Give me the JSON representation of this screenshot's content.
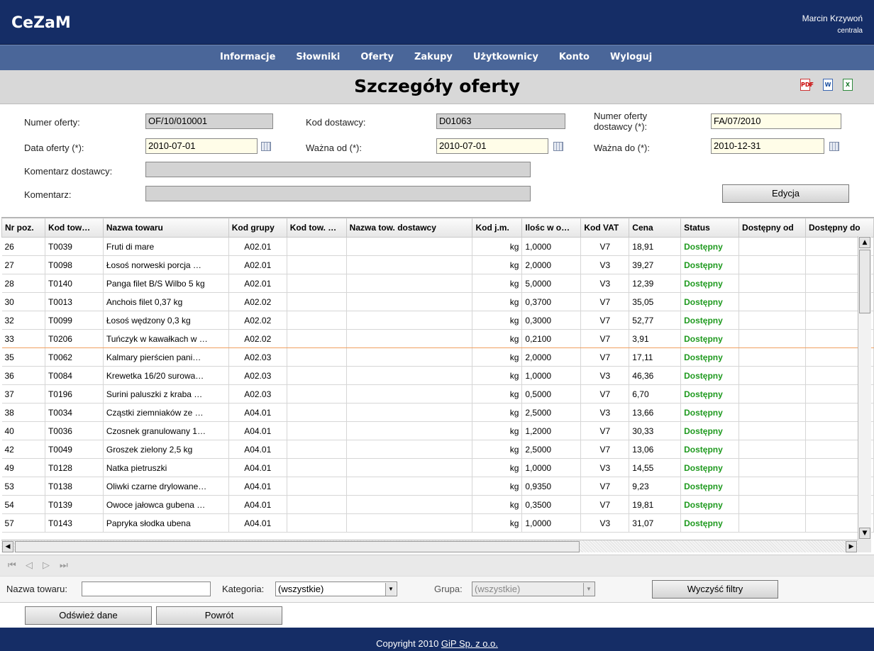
{
  "app": {
    "title": "CeZaM",
    "user_name": "Marcin Krzywoń",
    "user_location": "centrala"
  },
  "nav": {
    "items": [
      "Informacje",
      "Słowniki",
      "Oferty",
      "Zakupy",
      "Użytkownicy",
      "Konto",
      "Wyloguj"
    ]
  },
  "page": {
    "title": "Szczegóły oferty"
  },
  "export": {
    "pdf_icon": "pdf-icon",
    "word_icon": "word-icon",
    "excel_icon": "excel-icon"
  },
  "form": {
    "numer_oferty_label": "Numer oferty:",
    "numer_oferty_value": "OF/10/010001",
    "kod_dostawcy_label": "Kod dostawcy:",
    "kod_dostawcy_value": "D01063",
    "numer_oferty_dostawcy_label_1": "Numer oferty",
    "numer_oferty_dostawcy_label_2": "dostawcy (*):",
    "numer_oferty_dostawcy_value": "FA/07/2010",
    "data_oferty_label": "Data oferty (*):",
    "data_oferty_value": "2010-07-01",
    "wazna_od_label": "Ważna od (*):",
    "wazna_od_value": "2010-07-01",
    "wazna_do_label": "Ważna do (*):",
    "wazna_do_value": "2010-12-31",
    "komentarz_dostawcy_label": "Komentarz dostawcy:",
    "komentarz_dostawcy_value": "",
    "komentarz_label": "Komentarz:",
    "komentarz_value": "",
    "edycja_button": "Edycja"
  },
  "grid": {
    "columns": [
      "Nr poz.",
      "Kod tow…",
      "Nazwa towaru",
      "Kod grupy",
      "Kod tow. …",
      "Nazwa tow. dostawcy",
      "Kod j.m.",
      "Ilośc w o…",
      "Kod VAT",
      "Cena",
      "Status",
      "Dostępny od",
      "Dostępny do"
    ],
    "rows": [
      [
        "26",
        "T0039",
        "Fruti di mare",
        "A02.01",
        "",
        "",
        "kg",
        "1,0000",
        "V7",
        "18,91",
        "Dostępny",
        "",
        ""
      ],
      [
        "27",
        "T0098",
        "Łosoś norweski porcja …",
        "A02.01",
        "",
        "",
        "kg",
        "2,0000",
        "V3",
        "39,27",
        "Dostępny",
        "",
        ""
      ],
      [
        "28",
        "T0140",
        "Panga filet B/S Wilbo 5 kg",
        "A02.01",
        "",
        "",
        "kg",
        "5,0000",
        "V3",
        "12,39",
        "Dostępny",
        "",
        ""
      ],
      [
        "30",
        "T0013",
        "Anchois filet 0,37 kg",
        "A02.02",
        "",
        "",
        "kg",
        "0,3700",
        "V7",
        "35,05",
        "Dostępny",
        "",
        ""
      ],
      [
        "32",
        "T0099",
        "Łosoś wędzony 0,3 kg",
        "A02.02",
        "",
        "",
        "kg",
        "0,3000",
        "V7",
        "52,77",
        "Dostępny",
        "",
        ""
      ],
      [
        "33",
        "T0206",
        "Tuńczyk w kawałkach w …",
        "A02.02",
        "",
        "",
        "kg",
        "0,2100",
        "V7",
        "3,91",
        "Dostępny",
        "",
        ""
      ],
      [
        "35",
        "T0062",
        "Kalmary pierścien pani…",
        "A02.03",
        "",
        "",
        "kg",
        "2,0000",
        "V7",
        "17,11",
        "Dostępny",
        "",
        ""
      ],
      [
        "36",
        "T0084",
        "Krewetka 16/20 surowa…",
        "A02.03",
        "",
        "",
        "kg",
        "1,0000",
        "V3",
        "46,36",
        "Dostępny",
        "",
        ""
      ],
      [
        "37",
        "T0196",
        "Surini paluszki z kraba …",
        "A02.03",
        "",
        "",
        "kg",
        "0,5000",
        "V7",
        "6,70",
        "Dostępny",
        "",
        ""
      ],
      [
        "38",
        "T0034",
        "Cząstki ziemniaków ze …",
        "A04.01",
        "",
        "",
        "kg",
        "2,5000",
        "V3",
        "13,66",
        "Dostępny",
        "",
        ""
      ],
      [
        "40",
        "T0036",
        "Czosnek granulowany 1…",
        "A04.01",
        "",
        "",
        "kg",
        "1,2000",
        "V7",
        "30,33",
        "Dostępny",
        "",
        ""
      ],
      [
        "42",
        "T0049",
        "Groszek zielony 2,5 kg",
        "A04.01",
        "",
        "",
        "kg",
        "2,5000",
        "V7",
        "13,06",
        "Dostępny",
        "",
        ""
      ],
      [
        "49",
        "T0128",
        "Natka pietruszki",
        "A04.01",
        "",
        "",
        "kg",
        "1,0000",
        "V3",
        "14,55",
        "Dostępny",
        "",
        ""
      ],
      [
        "53",
        "T0138",
        "Oliwki czarne drylowane…",
        "A04.01",
        "",
        "",
        "kg",
        "0,9350",
        "V7",
        "9,23",
        "Dostępny",
        "",
        ""
      ],
      [
        "54",
        "T0139",
        "Owoce jałowca gubena …",
        "A04.01",
        "",
        "",
        "kg",
        "0,3500",
        "V7",
        "19,81",
        "Dostępny",
        "",
        ""
      ],
      [
        "57",
        "T0143",
        "Papryka słodka ubena",
        "A04.01",
        "",
        "",
        "kg",
        "1,0000",
        "V3",
        "31,07",
        "Dostępny",
        "",
        ""
      ]
    ],
    "highlighted_row_index": 5
  },
  "pager": {
    "first": "⏮",
    "prev": "◁",
    "next": "▷",
    "last": "⏭"
  },
  "filters": {
    "nazwa_label": "Nazwa towaru:",
    "nazwa_value": "",
    "kategoria_label": "Kategoria:",
    "kategoria_value": "(wszystkie)",
    "grupa_label": "Grupa:",
    "grupa_value": "(wszystkie)",
    "clear_button": "Wyczyść filtry"
  },
  "actions": {
    "refresh_button": "Odśwież dane",
    "back_button": "Powrót"
  },
  "footer": {
    "copyright_prefix": "Copyright 2010 ",
    "company_link": "GiP Sp. z o.o."
  },
  "colors": {
    "header": "#152d66",
    "nav": "#4a6699",
    "status_ok": "#1f9a1f"
  }
}
